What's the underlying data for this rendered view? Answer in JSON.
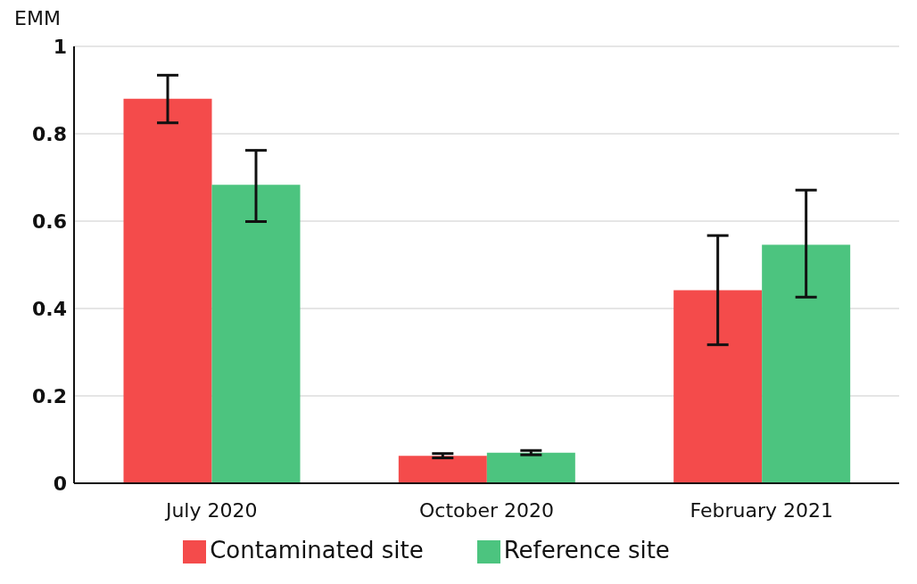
{
  "chart_data": {
    "type": "bar",
    "ylabel": "EMM",
    "categories": [
      "July 2020",
      "October 2020",
      "February 2021"
    ],
    "series": [
      {
        "name": "Contaminated site",
        "color": "#f44b4b",
        "values": [
          0.88,
          0.063,
          0.442
        ],
        "errors": [
          [
            0.825,
            0.934
          ],
          [
            0.058,
            0.068
          ],
          [
            0.317,
            0.567
          ]
        ]
      },
      {
        "name": "Reference site",
        "color": "#4cc47f",
        "values": [
          0.683,
          0.07,
          0.546
        ],
        "errors": [
          [
            0.599,
            0.762
          ],
          [
            0.065,
            0.075
          ],
          [
            0.426,
            0.671
          ]
        ]
      }
    ],
    "ylim": [
      0,
      1
    ],
    "yticks": [
      0,
      0.2,
      0.4,
      0.6,
      0.8,
      1
    ],
    "grid": "y",
    "legend": "bottom"
  }
}
